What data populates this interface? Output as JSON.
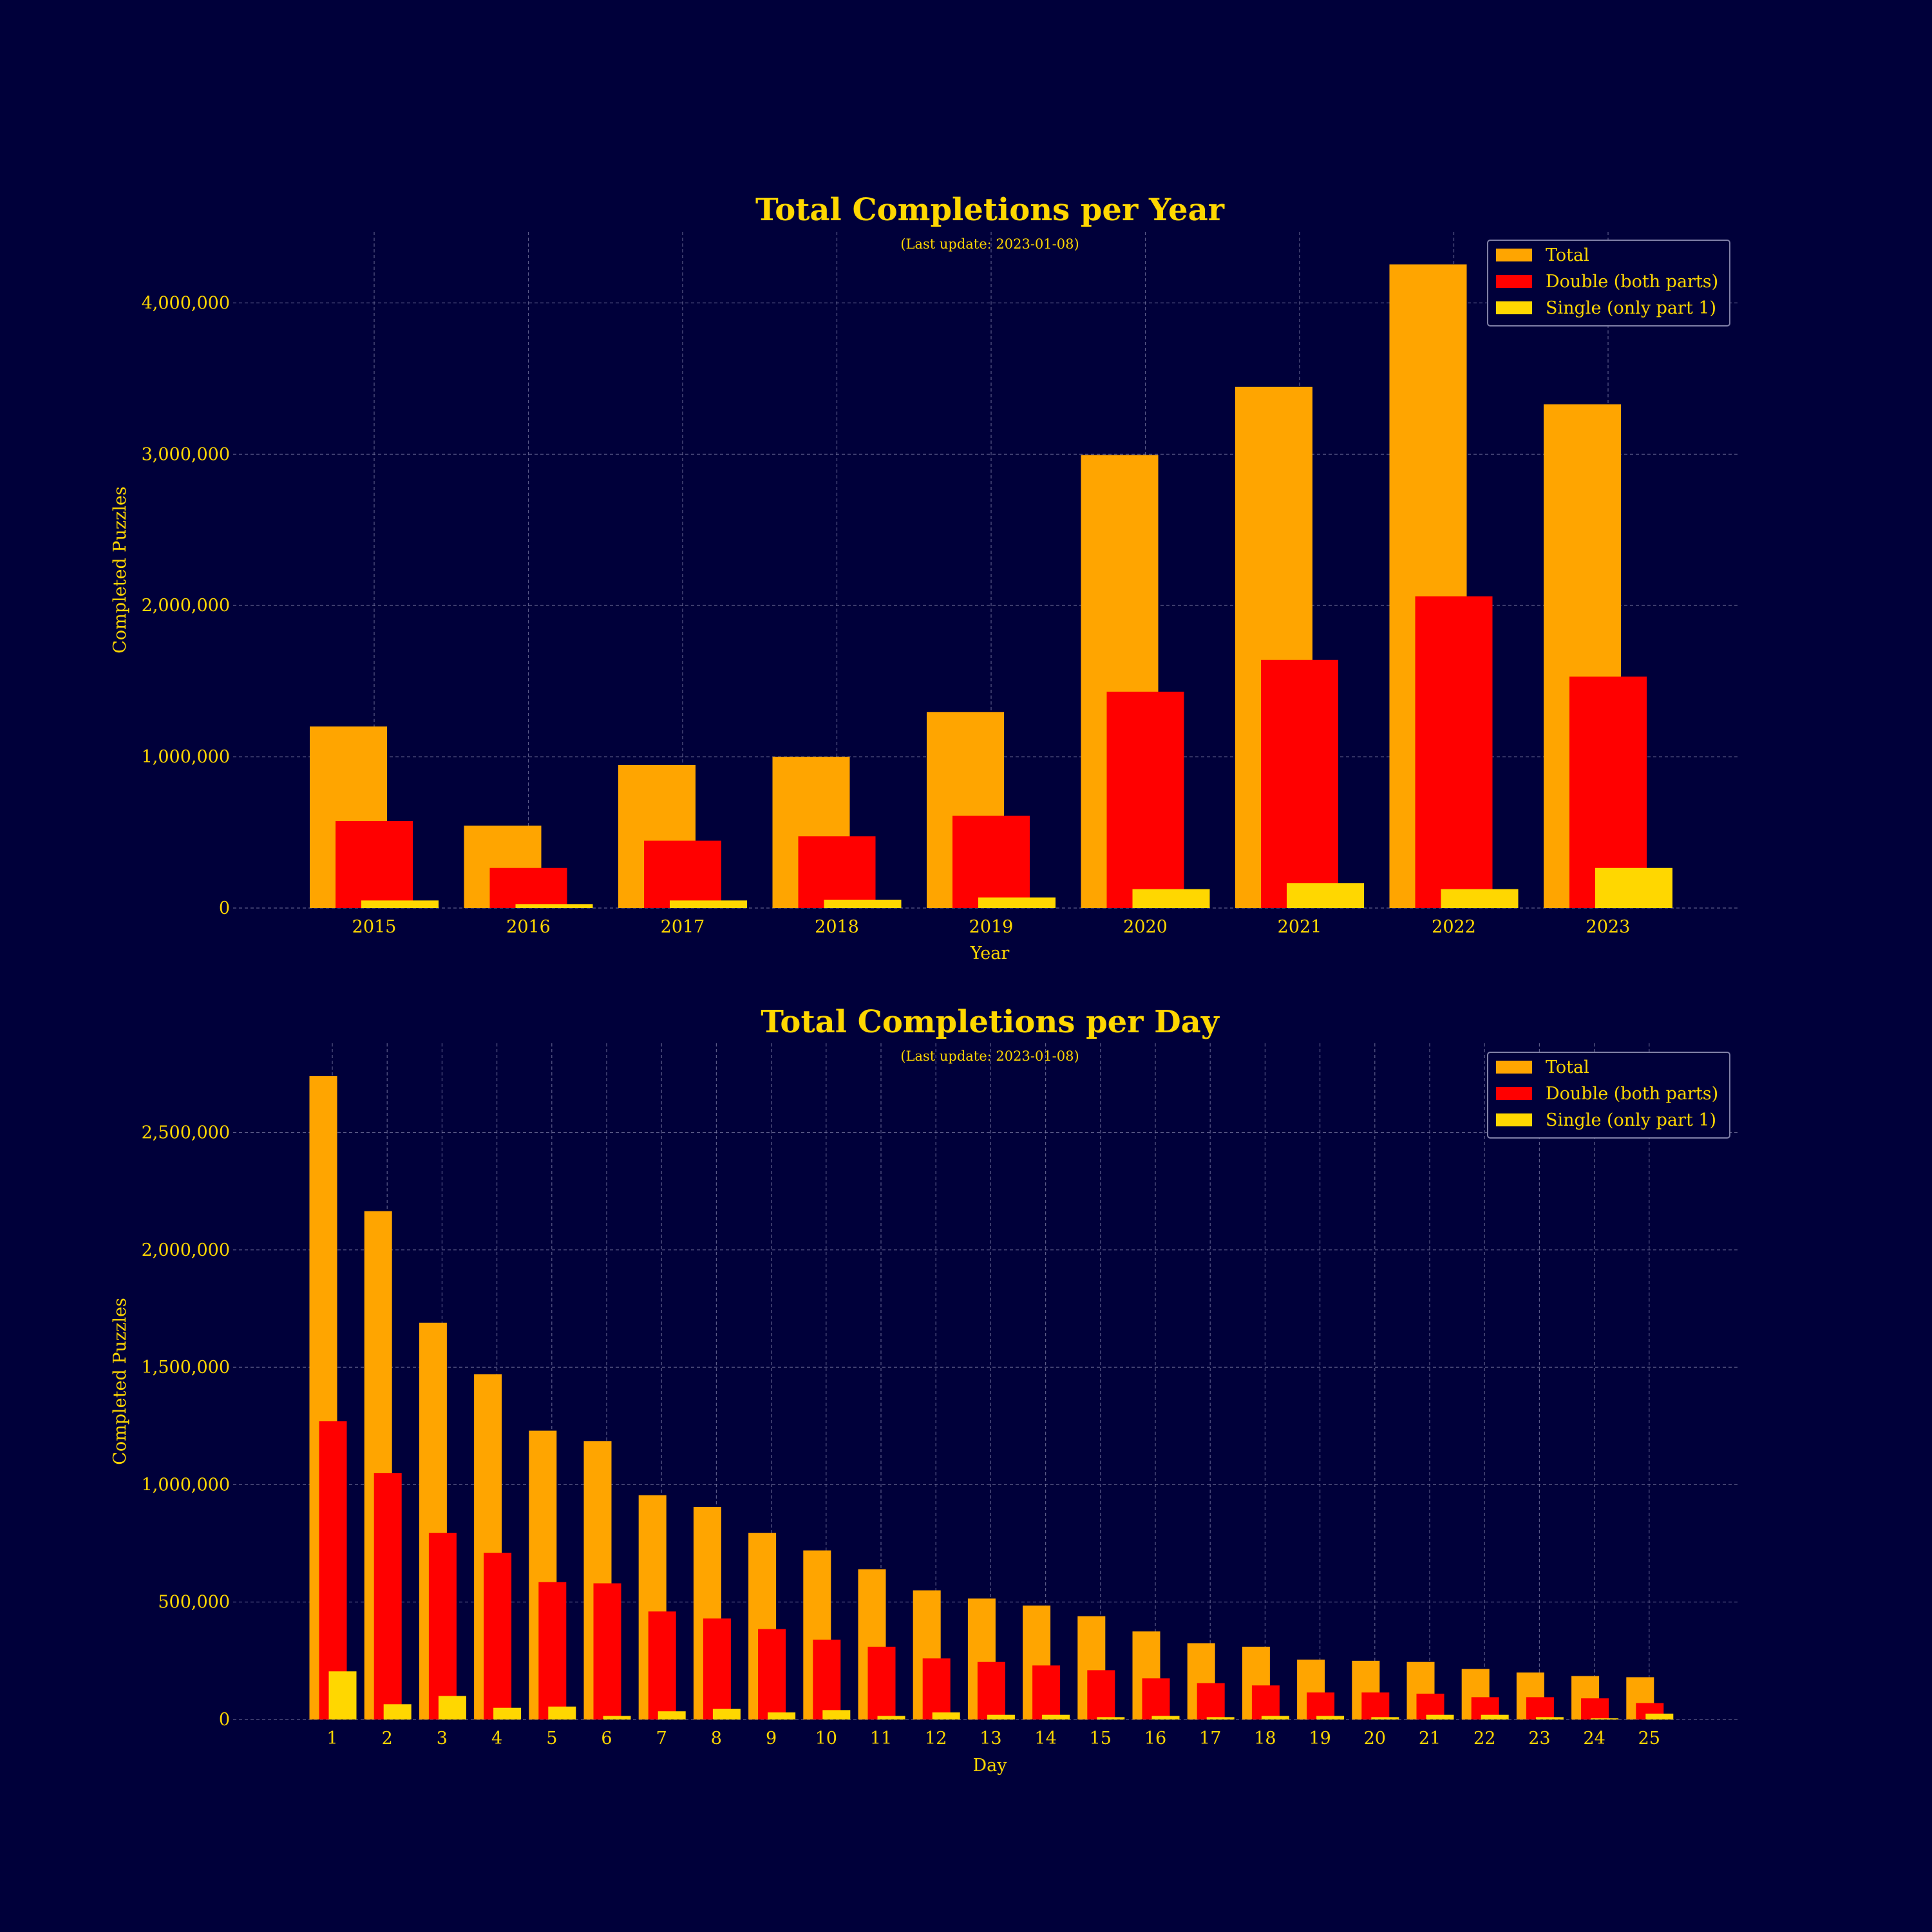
{
  "colors": {
    "background": "#00003a",
    "text": "#ffd700",
    "total": "#ffa500",
    "double": "#ff0000",
    "single": "#ffd700",
    "grid": "#8080a8",
    "legend_border": "#8080a8"
  },
  "chart_data": [
    {
      "type": "bar",
      "title": "Total Completions per Year",
      "subtitle": "(Last update: 2023-01-08)",
      "xlabel": "Year",
      "ylabel": "Completed Puzzles",
      "categories": [
        "2015",
        "2016",
        "2017",
        "2018",
        "2019",
        "2020",
        "2021",
        "2022",
        "2023"
      ],
      "ylim": [
        0,
        4470000
      ],
      "yticks": [
        0,
        1000000,
        2000000,
        3000000,
        4000000
      ],
      "ytick_labels": [
        "0",
        "1,000,000",
        "2,000,000",
        "3,000,000",
        "4,000,000"
      ],
      "grid": true,
      "legend_position": "top-right",
      "series": [
        {
          "name": "Total",
          "values": [
            1200000,
            545000,
            945000,
            1000000,
            1295000,
            2995000,
            3445000,
            4255000,
            3330000
          ]
        },
        {
          "name": "Double (both parts)",
          "values": [
            575000,
            265000,
            445000,
            475000,
            610000,
            1430000,
            1640000,
            2060000,
            1530000
          ]
        },
        {
          "name": "Single (only part 1)",
          "values": [
            50000,
            25000,
            50000,
            55000,
            70000,
            125000,
            165000,
            125000,
            265000
          ]
        }
      ]
    },
    {
      "type": "bar",
      "title": "Total Completions per Day",
      "subtitle": "(Last update: 2023-01-08)",
      "xlabel": "Day",
      "ylabel": "Completed Puzzles",
      "categories": [
        "1",
        "2",
        "3",
        "4",
        "5",
        "6",
        "7",
        "8",
        "9",
        "10",
        "11",
        "12",
        "13",
        "14",
        "15",
        "16",
        "17",
        "18",
        "19",
        "20",
        "21",
        "22",
        "23",
        "24",
        "25"
      ],
      "ylim": [
        0,
        2880000
      ],
      "yticks": [
        0,
        500000,
        1000000,
        1500000,
        2000000,
        2500000
      ],
      "ytick_labels": [
        "0",
        "500,000",
        "1,000,000",
        "1,500,000",
        "2,000,000",
        "2,500,000"
      ],
      "grid": true,
      "legend_position": "top-right",
      "series": [
        {
          "name": "Total",
          "values": [
            2740000,
            2165000,
            1690000,
            1470000,
            1230000,
            1185000,
            955000,
            905000,
            795000,
            720000,
            640000,
            550000,
            515000,
            485000,
            440000,
            375000,
            325000,
            310000,
            255000,
            250000,
            245000,
            215000,
            200000,
            185000,
            180000
          ]
        },
        {
          "name": "Double (both parts)",
          "values": [
            1270000,
            1050000,
            795000,
            710000,
            585000,
            580000,
            460000,
            430000,
            385000,
            340000,
            310000,
            260000,
            245000,
            230000,
            210000,
            175000,
            155000,
            145000,
            115000,
            115000,
            110000,
            95000,
            95000,
            90000,
            70000
          ]
        },
        {
          "name": "Single (only part 1)",
          "values": [
            205000,
            65000,
            100000,
            50000,
            55000,
            15000,
            35000,
            45000,
            30000,
            40000,
            15000,
            30000,
            20000,
            20000,
            10000,
            15000,
            10000,
            15000,
            15000,
            10000,
            20000,
            20000,
            10000,
            5000,
            25000
          ]
        }
      ]
    }
  ]
}
